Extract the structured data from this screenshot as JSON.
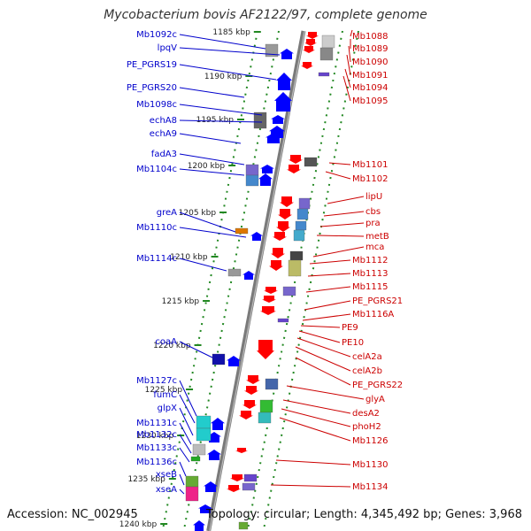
{
  "title": "Mycobacterium bovis AF2122/97, complete genome",
  "accession": "Accession: NC_002945",
  "summary": "Topology: circular; Length: 4,345,492 bp; Genes: 3,968",
  "colors": {
    "forward_label": "#0000cc",
    "reverse_label": "#cc0000",
    "forward_gene": "#0000ff",
    "reverse_gene": "#ff0000",
    "backbone": "#888888",
    "tick": "#228822"
  },
  "kbp_ticks": [
    "1185 kbp",
    "1190 kbp",
    "1195 kbp",
    "1200 kbp",
    "1205 kbp",
    "1210 kbp",
    "1215 kbp",
    "1220 kbp",
    "1225 kbp",
    "1230 kbp",
    "1235 kbp",
    "1240 kbp"
  ],
  "forward_labels": [
    "Mb1092c",
    "lpqV",
    "PE_PGRS19",
    "PE_PGRS20",
    "Mb1098c",
    "echA8",
    "echA9",
    "fadA3",
    "Mb1104c",
    "greA",
    "Mb1110c",
    "Mb1114c",
    "coaA",
    "Mb1127c",
    "fumC",
    "glpX",
    "Mb1131c",
    "Mb1132c",
    "Mb1133c",
    "Mb1136c",
    "xseB",
    "xseA"
  ],
  "reverse_labels": [
    "Mb1088",
    "Mb1089",
    "Mb1090",
    "Mb1091",
    "Mb1094",
    "Mb1095",
    "Mb1101",
    "Mb1102",
    "lipU",
    "cbs",
    "pra",
    "metB",
    "mca",
    "Mb1112",
    "Mb1113",
    "Mb1115",
    "PE_PGRS21",
    "Mb1116A",
    "PE9",
    "PE10",
    "celA2a",
    "celA2b",
    "PE_PGRS22",
    "glyA",
    "desA2",
    "phoH2",
    "Mb1126",
    "Mb1130",
    "Mb1134"
  ]
}
